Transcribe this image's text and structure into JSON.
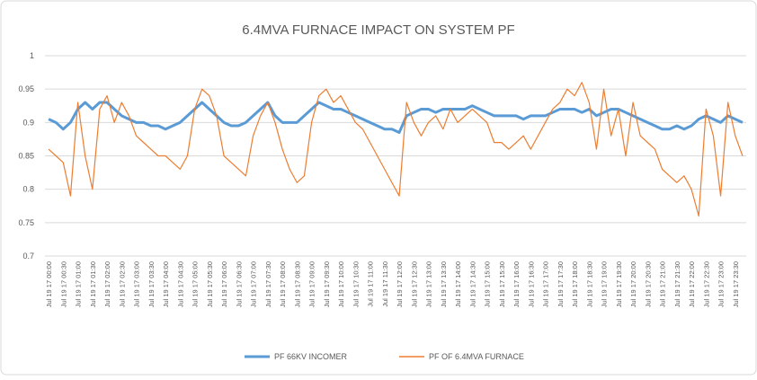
{
  "chart_data": {
    "type": "line",
    "title": "6.4MVA FURNACE IMPACT ON SYSTEM PF",
    "categories": [
      "Jul 19 17 00:00",
      null,
      "Jul 19 17 00:30",
      null,
      "Jul 19 17 01:00",
      null,
      "Jul 19 17 01:30",
      null,
      "Jul 19 17 02:00",
      null,
      "Jul 19 17 02:30",
      null,
      "Jul 19 17 03:00",
      null,
      "Jul 19 17 03:30",
      null,
      "Jul 19 17 04:00",
      null,
      "Jul 19 17 04:30",
      null,
      "Jul 19 17 05:00",
      null,
      "Jul 19 17 05:30",
      null,
      "Jul 19 17 06:00",
      null,
      "Jul 19 17 06:30",
      null,
      "Jul 19 17 07:00",
      null,
      "Jul 19 17 07:30",
      null,
      "Jul 19 17 08:00",
      null,
      "Jul 19 17 08:30",
      null,
      "Jul 19 17 09:00",
      null,
      "Jul 19 17 09:30",
      null,
      "Jul 19 17 10:00",
      null,
      "Jul 19 17 10:30",
      null,
      "Jul 19 17 11:00",
      null,
      "Jul 19 17 11:30",
      null,
      "Jul 19 17 12:00",
      null,
      "Jul 19 17 12:30",
      null,
      "Jul 19 17 13:00",
      null,
      "Jul 19 17 13:30",
      null,
      "Jul 19 17 14:00",
      null,
      "Jul 19 17 14:30",
      null,
      "Jul 19 17 15:00",
      null,
      "Jul 19 17 15:30",
      null,
      "Jul 19 17 16:00",
      null,
      "Jul 19 17 16:30",
      null,
      "Jul 19 17 17:00",
      null,
      "Jul 19 17 17:30",
      null,
      "Jul 19 17 18:00",
      null,
      "Jul 19 17 18:30",
      null,
      "Jul 19 17 19:00",
      null,
      "Jul 19 17 19:30",
      null,
      "Jul 19 17 20:00",
      null,
      "Jul 19 17 20:30",
      null,
      "Jul 19 17 21:00",
      null,
      "Jul 19 17 21:30",
      null,
      "Jul 19 17 22:00",
      null,
      "Jul 19 17 22:30",
      null,
      "Jul 19 17 23:00",
      null,
      "Jul 19 17 23:30",
      null
    ],
    "series": [
      {
        "name": "PF 66KV INCOMER",
        "color": "#5b9bd5",
        "values": [
          0.905,
          0.9,
          0.89,
          0.9,
          0.92,
          0.93,
          0.92,
          0.93,
          0.93,
          0.92,
          0.91,
          0.905,
          0.9,
          0.9,
          0.895,
          0.895,
          0.89,
          0.895,
          0.9,
          0.91,
          0.92,
          0.93,
          0.92,
          0.91,
          0.9,
          0.895,
          0.895,
          0.9,
          0.91,
          0.92,
          0.93,
          0.91,
          0.9,
          0.9,
          0.9,
          0.91,
          0.92,
          0.93,
          0.925,
          0.92,
          0.92,
          0.915,
          0.91,
          0.905,
          0.9,
          0.895,
          0.89,
          0.89,
          0.885,
          0.91,
          0.915,
          0.92,
          0.92,
          0.915,
          0.92,
          0.92,
          0.92,
          0.92,
          0.925,
          0.92,
          0.915,
          0.91,
          0.91,
          0.91,
          0.91,
          0.905,
          0.91,
          0.91,
          0.91,
          0.915,
          0.92,
          0.92,
          0.92,
          0.915,
          0.92,
          0.91,
          0.915,
          0.92,
          0.92,
          0.915,
          0.91,
          0.905,
          0.9,
          0.895,
          0.89,
          0.89,
          0.895,
          0.89,
          0.895,
          0.905,
          0.91,
          0.905,
          0.9,
          0.91,
          0.905,
          0.9
        ]
      },
      {
        "name": "PF OF 6.4MVA FURNACE",
        "color": "#ed7d31",
        "values": [
          0.86,
          0.85,
          0.84,
          0.79,
          0.93,
          0.85,
          0.8,
          0.92,
          0.94,
          0.9,
          0.93,
          0.91,
          0.88,
          0.87,
          0.86,
          0.85,
          0.85,
          0.84,
          0.83,
          0.85,
          0.92,
          0.95,
          0.94,
          0.91,
          0.85,
          0.84,
          0.83,
          0.82,
          0.88,
          0.91,
          0.93,
          0.9,
          0.86,
          0.83,
          0.81,
          0.82,
          0.9,
          0.94,
          0.95,
          0.93,
          0.94,
          0.92,
          0.9,
          0.89,
          0.87,
          0.85,
          0.83,
          0.81,
          0.79,
          0.93,
          0.9,
          0.88,
          0.9,
          0.91,
          0.89,
          0.92,
          0.9,
          0.91,
          0.92,
          0.91,
          0.9,
          0.87,
          0.87,
          0.86,
          0.87,
          0.88,
          0.86,
          0.88,
          0.9,
          0.92,
          0.93,
          0.95,
          0.94,
          0.96,
          0.93,
          0.86,
          0.95,
          0.88,
          0.92,
          0.85,
          0.93,
          0.88,
          0.87,
          0.86,
          0.83,
          0.82,
          0.81,
          0.82,
          0.8,
          0.76,
          0.92,
          0.88,
          0.79,
          0.93,
          0.88,
          0.85
        ]
      }
    ],
    "ylim": [
      0.7,
      1
    ],
    "yticks": [
      0.7,
      0.75,
      0.8,
      0.85,
      0.9,
      0.95,
      1
    ],
    "grid": true,
    "legend": "bottom"
  }
}
